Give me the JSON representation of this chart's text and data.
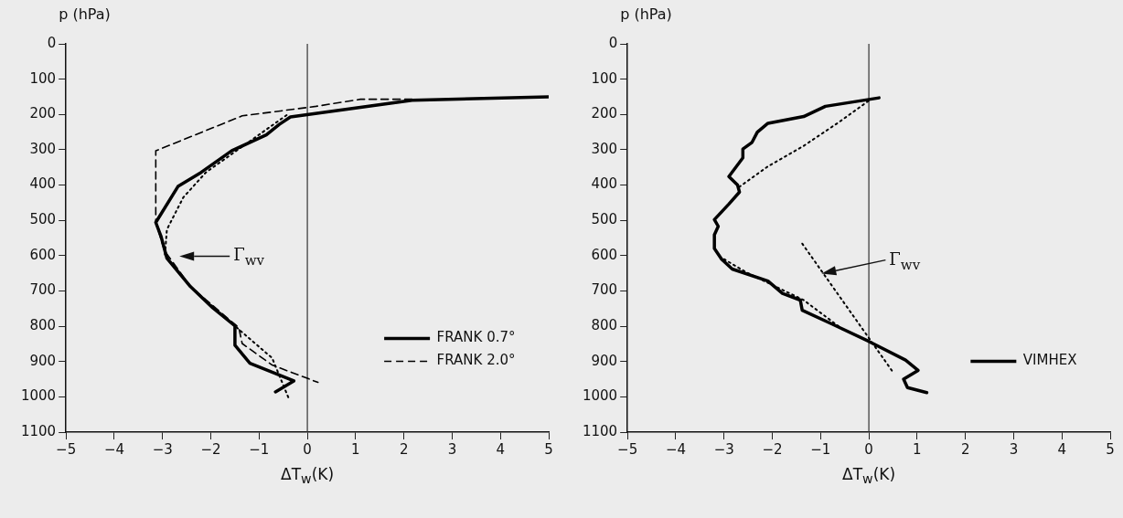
{
  "chart_data": [
    {
      "type": "line",
      "xlabel": "ΔT$_{w}$(K)",
      "ylabel": "p (hPa)",
      "xlim": [
        -5,
        5
      ],
      "xticks": [
        -5,
        -4,
        -3,
        -2,
        -1,
        0,
        1,
        2,
        3,
        4,
        5
      ],
      "ylim": [
        1100,
        0
      ],
      "yticks": [
        0,
        100,
        200,
        300,
        400,
        500,
        600,
        700,
        800,
        900,
        1000,
        1100
      ],
      "grid": false,
      "legend": "bottom right",
      "marker": "none",
      "ref_lines": [
        {
          "axis": "x",
          "value": 0,
          "color": "#333333",
          "line_style": "solid"
        }
      ],
      "annotations": [
        "Γ$_{wv}$"
      ],
      "series": [
        {
          "name": "FRANK 0.7°",
          "color": "#000000",
          "line_style": "solid",
          "x": [
            5,
            2.17,
            -0.35,
            -0.58,
            -0.85,
            -1.57,
            -2.2,
            -2.68,
            -3.14,
            -3.03,
            -2.91,
            -2.42,
            -1.96,
            -1.5,
            -1.5,
            -1.19,
            -0.28,
            -0.66
          ],
          "values": [
            150,
            160,
            207,
            228,
            258,
            303,
            364,
            404,
            506,
            546,
            607,
            688,
            748,
            799,
            854,
            905,
            955,
            986
          ]
        },
        {
          "name": "FRANK 2.0°",
          "color": "#000000",
          "line_style": "dashed",
          "x": [
            2.17,
            1.1,
            0.18,
            -1.35,
            -3.14,
            -3.14,
            -2.96,
            -2.42,
            -1.42,
            -1.35,
            -0.73,
            0.22
          ],
          "values": [
            157,
            157,
            177,
            204,
            303,
            506,
            586,
            688,
            804,
            849,
            910,
            959
          ]
        },
        {
          "color": "#000000",
          "line_style": "dotted",
          "x": [
            -0.43,
            -2.1,
            -2.57,
            -2.91,
            -2.95,
            -2.42,
            -1.42,
            -0.73,
            -0.39
          ],
          "values": [
            202,
            364,
            435,
            526,
            597,
            688,
            809,
            890,
            1003
          ]
        }
      ]
    },
    {
      "type": "line",
      "xlabel": "ΔT$_{w}$(K)",
      "ylabel": "p (hPa)",
      "xlim": [
        -5,
        5
      ],
      "xticks": [
        -5,
        -4,
        -3,
        -2,
        -1,
        0,
        1,
        2,
        3,
        4,
        5
      ],
      "ylim": [
        1100,
        0
      ],
      "yticks": [
        0,
        100,
        200,
        300,
        400,
        500,
        600,
        700,
        800,
        900,
        1000,
        1100
      ],
      "grid": false,
      "legend": "bottom right",
      "marker": "none",
      "ref_lines": [
        {
          "axis": "x",
          "value": 0,
          "color": "#333333",
          "line_style": "solid"
        }
      ],
      "annotations": [
        "Γ$_{wv}$"
      ],
      "series": [
        {
          "name": "VIMHEX",
          "color": "#000000",
          "line_style": "solid",
          "x": [
            0.21,
            -0.9,
            -1.35,
            -2.09,
            -2.31,
            -2.42,
            -2.61,
            -2.61,
            -2.9,
            -2.72,
            -2.68,
            -2.9,
            -3.2,
            -3.12,
            -3.2,
            -3.2,
            -3.05,
            -2.83,
            -2.09,
            -1.79,
            -1.42,
            -1.38,
            -0.76,
            0,
            0.76,
            1.02,
            0.72,
            0.8,
            1.2
          ],
          "values": [
            153,
            177,
            206,
            225,
            250,
            279,
            298,
            323,
            376,
            400,
            420,
            454,
            498,
            517,
            541,
            580,
            610,
            638,
            672,
            707,
            726,
            755,
            794,
            843,
            896,
            925,
            950,
            974,
            988
          ]
        },
        {
          "color": "#000000",
          "line_style": "dotted",
          "x": [
            -0.01,
            -0.61,
            -1.35,
            -2.09,
            -2.68
          ],
          "values": [
            162,
            221,
            289,
            347,
            405
          ]
        },
        {
          "color": "#000000",
          "line_style": "dotted",
          "x": [
            -3.0,
            -2.53,
            -1.35,
            -0.53
          ],
          "values": [
            610,
            648,
            726,
            810
          ]
        },
        {
          "color": "#000000",
          "line_style": "dotted",
          "x": [
            -1.38,
            0.5
          ],
          "values": [
            566,
            930
          ]
        }
      ]
    }
  ]
}
